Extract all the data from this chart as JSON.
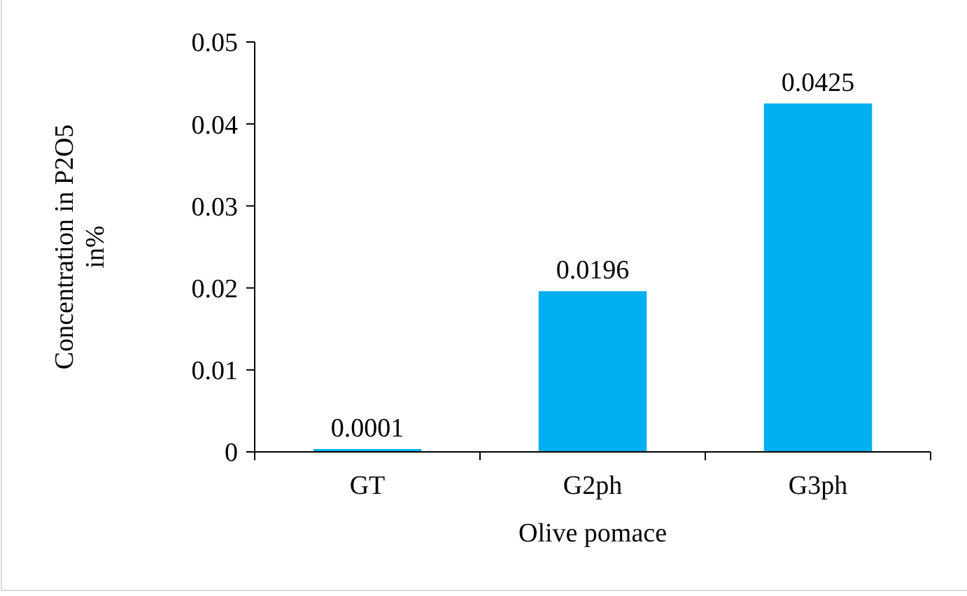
{
  "chart_data": {
    "type": "bar",
    "xlabel": "Olive pomace",
    "ylabel": "Concentration in P2O5 in%",
    "categories": [
      "GT",
      "G2ph",
      "G3ph"
    ],
    "values": [
      0.0001,
      0.0196,
      0.0425
    ],
    "color": "#00b0f0",
    "ylim": [
      0,
      0.05
    ],
    "yticks": [
      0,
      0.01,
      0.02,
      0.03,
      0.04,
      0.05
    ],
    "data_labels": true,
    "grid": false
  }
}
